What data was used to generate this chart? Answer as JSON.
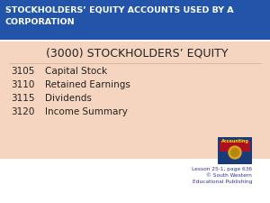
{
  "title_line1": "STOCKHOLDERS’ EQUITY ACCOUNTS USED BY A",
  "title_line2": "CORPORATION",
  "title_bg": "#2255AA",
  "title_color": "#FFFFFF",
  "content_bg": "#F5D5C0",
  "header": "(3000) STOCKHOLDERS’ EQUITY",
  "accounts": [
    {
      "code": "3105",
      "name": "Capital Stock"
    },
    {
      "code": "3110",
      "name": "Retained Earnings"
    },
    {
      "code": "3115",
      "name": "Dividends"
    },
    {
      "code": "3120",
      "name": "Income Summary"
    }
  ],
  "footer_line1": "Lesson 25-1, page 636",
  "footer_line2": "© South Western",
  "footer_line3": "Educational Publishing",
  "footer_color": "#333399",
  "bg_color": "#FFFFFF"
}
